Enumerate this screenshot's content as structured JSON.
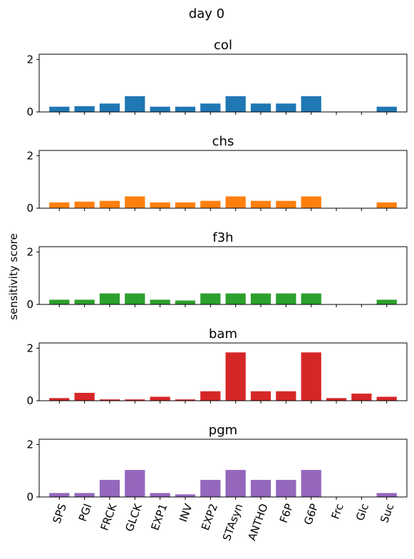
{
  "suptitle": "day 0",
  "ylabel": "sensitivity score",
  "chart_data": {
    "type": "bar",
    "layout": "5 stacked subplots sharing x",
    "categories": [
      "SPS",
      "PGI",
      "FRCK",
      "GLCK",
      "EXP1",
      "INV",
      "EXP2",
      "STAsyn",
      "ANTHO",
      "F6P",
      "G6P",
      "Frc",
      "Glc",
      "Suc"
    ],
    "ylim": [
      0,
      2.2
    ],
    "yticks": [
      0,
      2
    ],
    "panels": [
      {
        "title": "col",
        "color": "#1f77b4",
        "values": [
          0.2,
          0.22,
          0.32,
          0.6,
          0.2,
          0.2,
          0.32,
          0.6,
          0.32,
          0.32,
          0.6,
          0,
          0,
          0.2
        ]
      },
      {
        "title": "chs",
        "color": "#ff7f0e",
        "values": [
          0.22,
          0.25,
          0.28,
          0.45,
          0.22,
          0.22,
          0.28,
          0.45,
          0.28,
          0.28,
          0.45,
          0,
          0,
          0.22
        ]
      },
      {
        "title": "f3h",
        "color": "#2ca02c",
        "values": [
          0.18,
          0.18,
          0.42,
          0.42,
          0.18,
          0.15,
          0.42,
          0.42,
          0.42,
          0.42,
          0.42,
          0,
          0,
          0.18
        ]
      },
      {
        "title": "bam",
        "color": "#d62728",
        "values": [
          0.1,
          0.3,
          0.05,
          0.05,
          0.15,
          0.05,
          0.36,
          1.84,
          0.36,
          0.36,
          1.84,
          0.1,
          0.27,
          0.15
        ]
      },
      {
        "title": "pgm",
        "color": "#9467bd",
        "values": [
          0.15,
          0.15,
          0.65,
          1.03,
          0.15,
          0.1,
          0.65,
          1.03,
          0.65,
          0.65,
          1.03,
          0,
          0,
          0.15
        ]
      }
    ]
  }
}
